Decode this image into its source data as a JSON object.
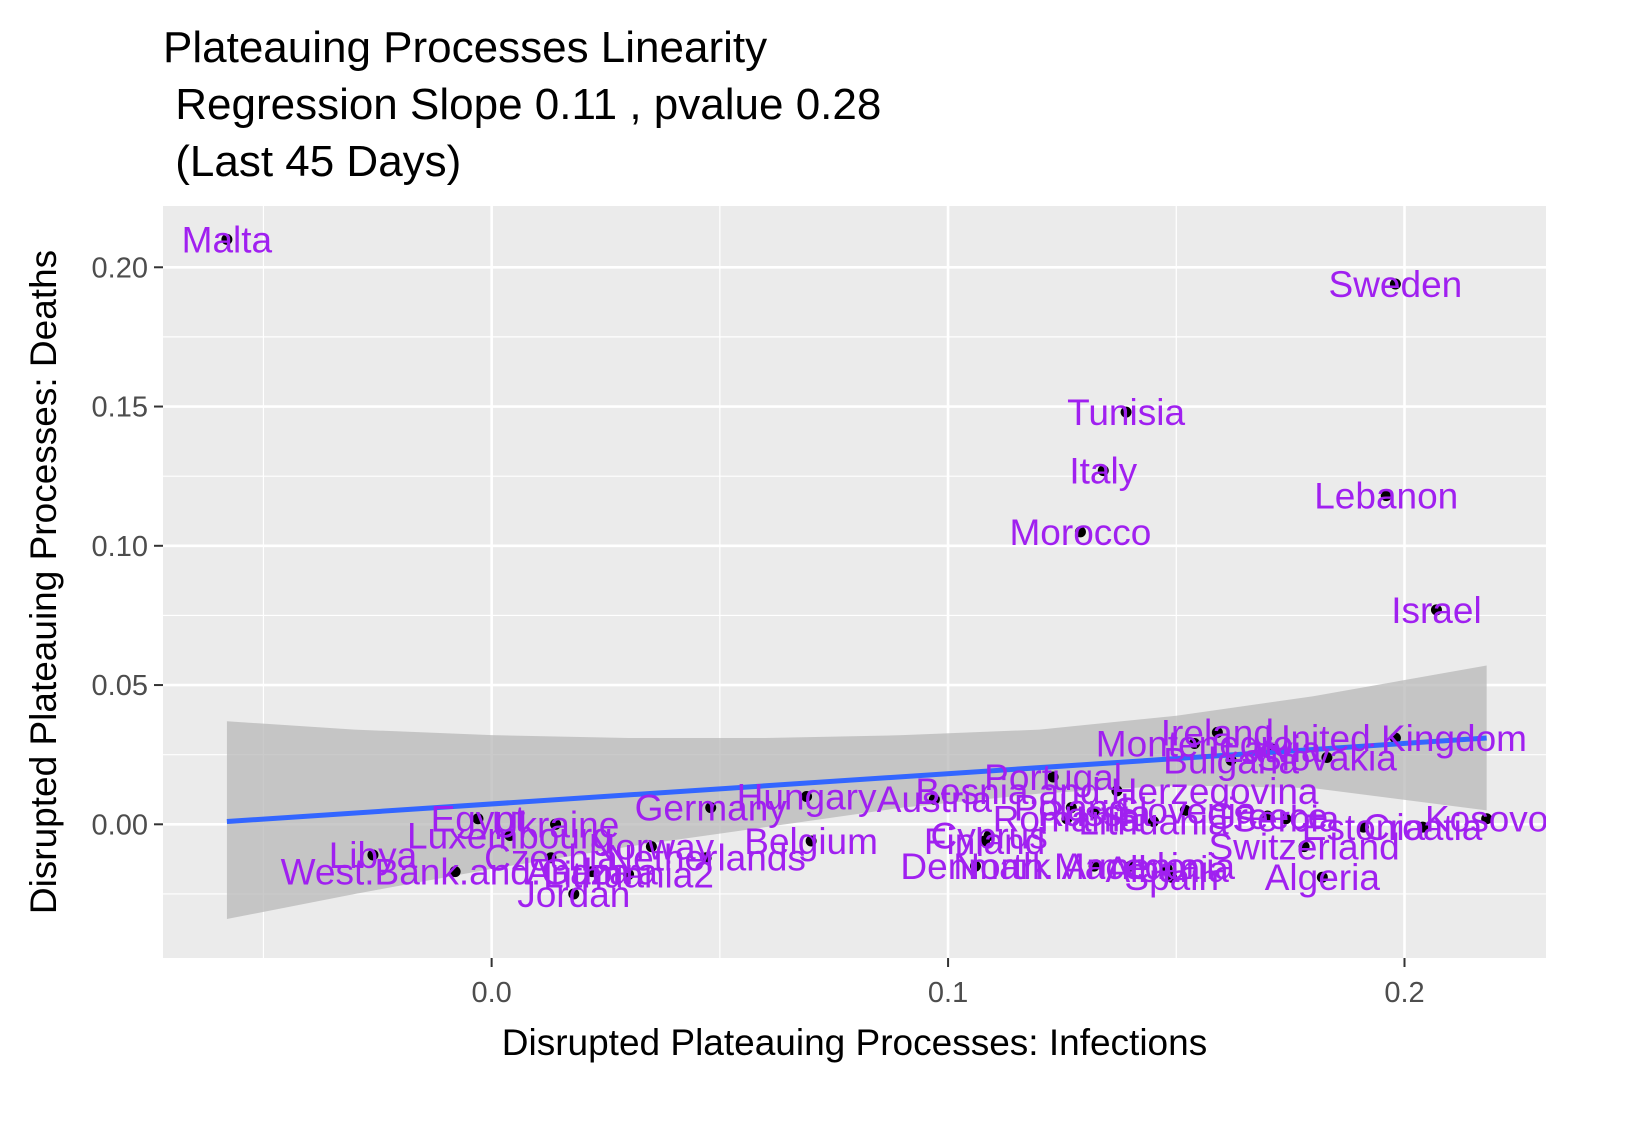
{
  "chart_data": {
    "type": "scatter",
    "title_lines": [
      "Plateauing Processes Linearity",
      " Regression Slope 0.11 , pvalue 0.28",
      " (Last 45 Days)"
    ],
    "xlabel": "Disrupted Plateauing Processes: Infections",
    "ylabel": "Disrupted Plateauing Processes: Deaths",
    "xlim": [
      -0.072,
      0.231
    ],
    "ylim": [
      -0.048,
      0.222
    ],
    "x_ticks": [
      0.0,
      0.1,
      0.2
    ],
    "x_tick_labels": [
      "0.0",
      "0.1",
      "0.2"
    ],
    "y_ticks": [
      0.0,
      0.05,
      0.1,
      0.15,
      0.2
    ],
    "y_tick_labels": [
      "0.00",
      "0.05",
      "0.10",
      "0.15",
      "0.20"
    ],
    "grid": true,
    "colors": {
      "panel": "#ebebeb",
      "grid": "#ffffff",
      "point": "#000000",
      "label": "#a020f0",
      "regression": "#3366ff",
      "ribbon": "#b8b8b8",
      "axis_text": "#4d4d4d",
      "title": "#000000"
    },
    "regression": {
      "x": [
        -0.058,
        0.218
      ],
      "y": [
        0.001,
        0.031
      ]
    },
    "ribbon": {
      "x": [
        -0.058,
        -0.03,
        0.0,
        0.03,
        0.06,
        0.09,
        0.12,
        0.15,
        0.18,
        0.218
      ],
      "ymin": [
        -0.034,
        -0.025,
        -0.016,
        -0.008,
        -0.001,
        0.006,
        0.011,
        0.014,
        0.013,
        0.005
      ],
      "ymax": [
        0.037,
        0.034,
        0.032,
        0.031,
        0.031,
        0.032,
        0.034,
        0.039,
        0.046,
        0.057
      ]
    },
    "points": [
      {
        "label": "Malta",
        "x": -0.058,
        "y": 0.21
      },
      {
        "label": "Sweden",
        "x": 0.198,
        "y": 0.194
      },
      {
        "label": "Tunisia",
        "x": 0.139,
        "y": 0.148
      },
      {
        "label": "Italy",
        "x": 0.134,
        "y": 0.127
      },
      {
        "label": "Lebanon",
        "x": 0.196,
        "y": 0.118
      },
      {
        "label": "Morocco",
        "x": 0.129,
        "y": 0.105
      },
      {
        "label": "Israel",
        "x": 0.207,
        "y": 0.077
      },
      {
        "label": "Ireland",
        "x": 0.159,
        "y": 0.033
      },
      {
        "label": "United Kingdom",
        "x": 0.198,
        "y": 0.031
      },
      {
        "label": "Montenegro",
        "x": 0.154,
        "y": 0.029
      },
      {
        "label": "Latvia",
        "x": 0.171,
        "y": 0.027
      },
      {
        "label": "Slovakia",
        "x": 0.183,
        "y": 0.024
      },
      {
        "label": "Bulgaria",
        "x": 0.162,
        "y": 0.023
      },
      {
        "label": "Portugal",
        "x": 0.123,
        "y": 0.017
      },
      {
        "label": "Bosnia.and.Herzegovina",
        "x": 0.137,
        "y": 0.012
      },
      {
        "label": "Hungary",
        "x": 0.069,
        "y": 0.01
      },
      {
        "label": "Austria",
        "x": 0.097,
        "y": 0.009
      },
      {
        "label": "Germany",
        "x": 0.048,
        "y": 0.006
      },
      {
        "label": "Poland",
        "x": 0.127,
        "y": 0.006
      },
      {
        "label": "Slovenia",
        "x": 0.152,
        "y": 0.005
      },
      {
        "label": "Greece",
        "x": 0.17,
        "y": 0.003
      },
      {
        "label": "Russia",
        "x": 0.132,
        "y": 0.004
      },
      {
        "label": "Kosovo",
        "x": 0.218,
        "y": 0.002
      },
      {
        "label": "Egypt",
        "x": -0.003,
        "y": 0.002
      },
      {
        "label": "Serbia",
        "x": 0.174,
        "y": 0.002
      },
      {
        "label": "Romania",
        "x": 0.126,
        "y": 0.002
      },
      {
        "label": "Lithuania",
        "x": 0.145,
        "y": 0.001
      },
      {
        "label": "Ukraine",
        "x": 0.014,
        "y": 0.0
      },
      {
        "label": "Croatia",
        "x": 0.204,
        "y": -0.001
      },
      {
        "label": "Estonia",
        "x": 0.191,
        "y": -0.001
      },
      {
        "label": "Luxembourg",
        "x": 0.004,
        "y": -0.004
      },
      {
        "label": "Cyprus",
        "x": 0.109,
        "y": -0.004
      },
      {
        "label": "Finland",
        "x": 0.108,
        "y": -0.006
      },
      {
        "label": "Belgium",
        "x": 0.07,
        "y": -0.006
      },
      {
        "label": "Norway",
        "x": 0.035,
        "y": -0.008
      },
      {
        "label": "Switzerland",
        "x": 0.178,
        "y": -0.008
      },
      {
        "label": "Libya",
        "x": -0.026,
        "y": -0.011
      },
      {
        "label": "Czechia",
        "x": 0.013,
        "y": -0.012
      },
      {
        "label": "Netherlands",
        "x": 0.047,
        "y": -0.012
      },
      {
        "label": "Denmark",
        "x": 0.106,
        "y": -0.015
      },
      {
        "label": "North.Macedonia",
        "x": 0.132,
        "y": -0.015
      },
      {
        "label": "Armenia",
        "x": 0.14,
        "y": -0.015
      },
      {
        "label": "Albania",
        "x": 0.148,
        "y": -0.016
      },
      {
        "label": "West.Bank.and.Gaza",
        "x": -0.008,
        "y": -0.017
      },
      {
        "label": "Andorra",
        "x": 0.022,
        "y": -0.017
      },
      {
        "label": "Lithuania2",
        "x": 0.03,
        "y": -0.018
      },
      {
        "label": "Spain",
        "x": 0.149,
        "y": -0.019
      },
      {
        "label": "Algeria",
        "x": 0.182,
        "y": -0.019
      },
      {
        "label": "Jordan",
        "x": 0.018,
        "y": -0.025
      }
    ]
  }
}
